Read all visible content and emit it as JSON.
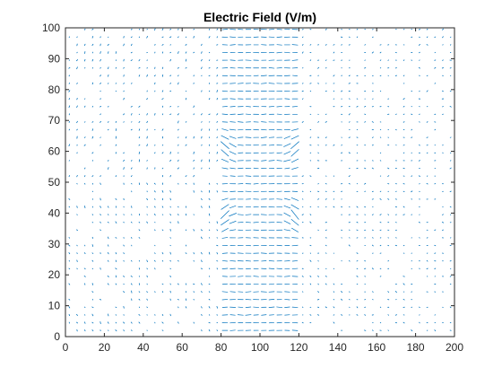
{
  "chart_data": {
    "type": "quiver",
    "title": "Electric Field (V/m)",
    "xlabel": "",
    "ylabel": "",
    "xlim": [
      0,
      200
    ],
    "ylim": [
      0,
      100
    ],
    "x_ticks": [
      0,
      20,
      40,
      60,
      80,
      100,
      120,
      140,
      160,
      180,
      200
    ],
    "y_ticks": [
      0,
      10,
      20,
      30,
      40,
      50,
      60,
      70,
      80,
      90,
      100
    ],
    "grid": false,
    "series": [
      {
        "color": "#0072BD",
        "grid_spacing": 4,
        "dense_region": {
          "x_range": [
            80,
            120
          ],
          "y_range": [
            0,
            100
          ]
        },
        "field_concentrations": [
          {
            "x": 82,
            "y": 61
          },
          {
            "x": 118,
            "y": 61
          },
          {
            "x": 82,
            "y": 39
          },
          {
            "x": 118,
            "y": 39
          }
        ]
      }
    ]
  }
}
